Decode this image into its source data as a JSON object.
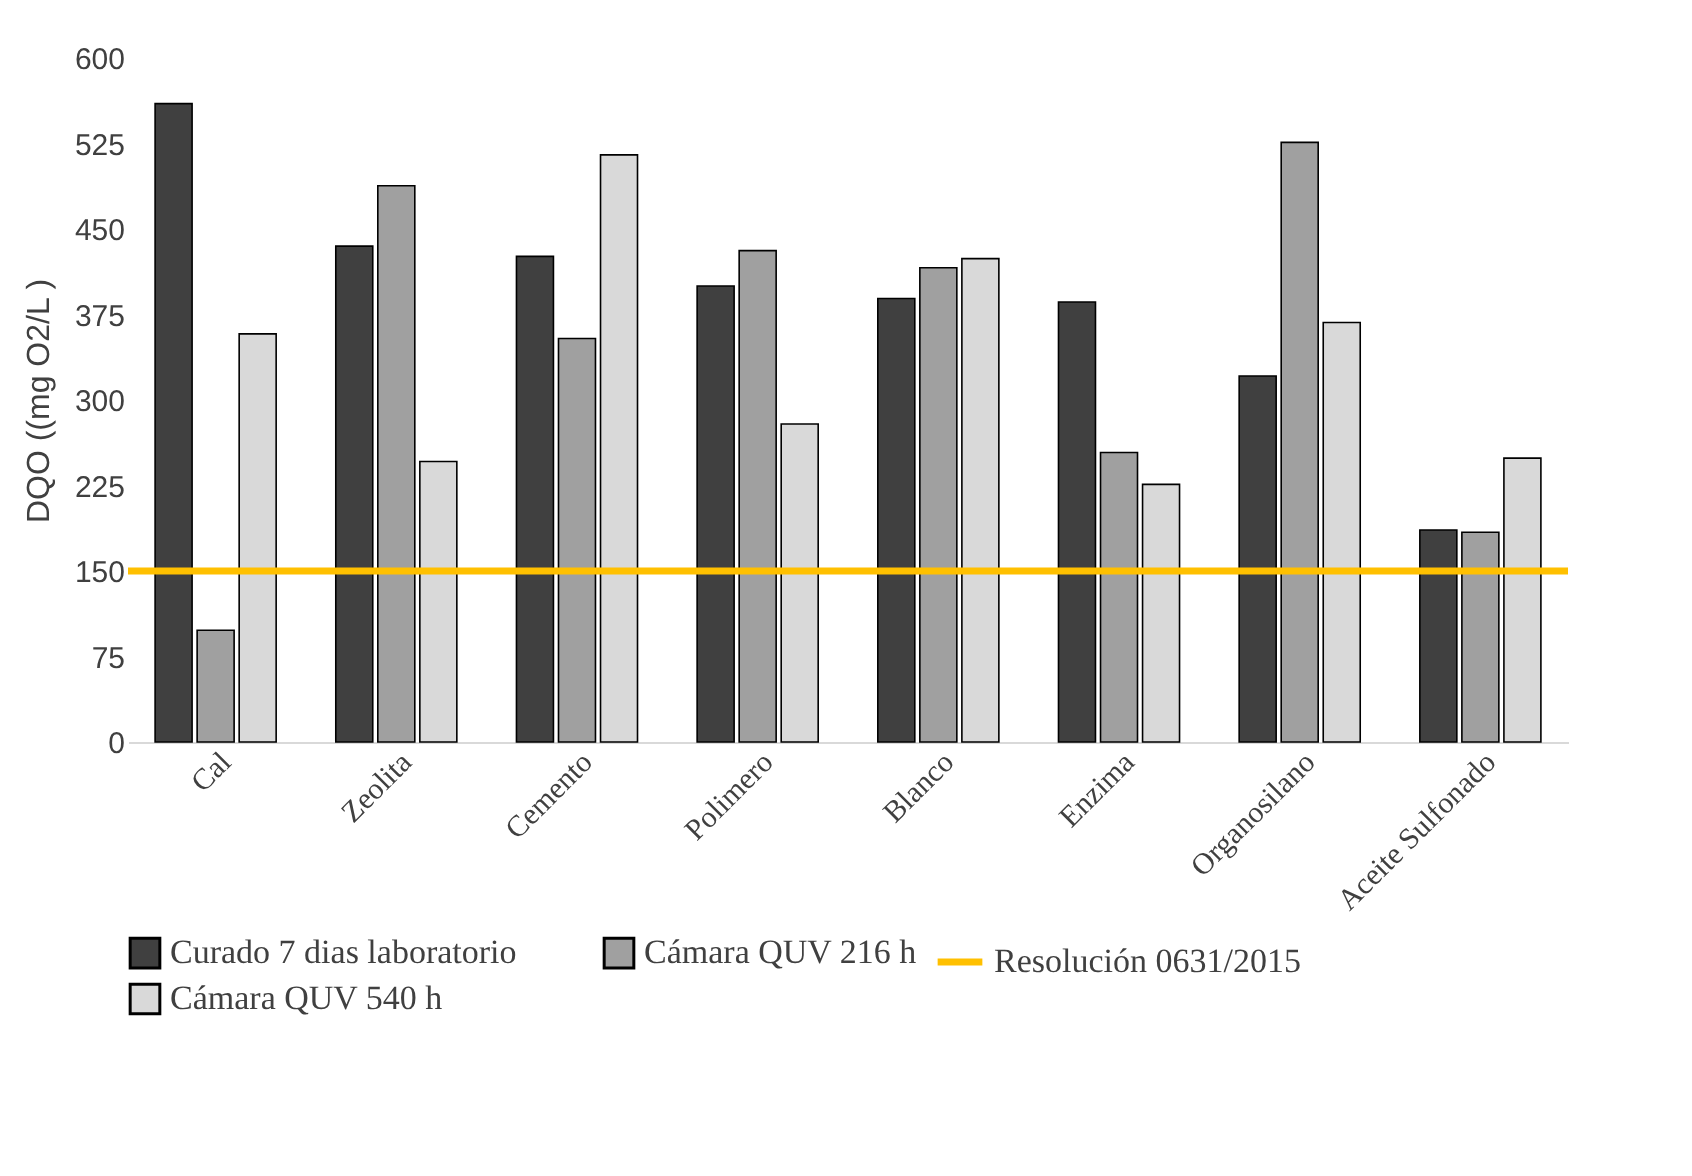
{
  "chart_data": {
    "type": "bar",
    "ylabel": "DQO ((mg O2/L )",
    "categories": [
      "Cal",
      "Zeolita",
      "Cemento",
      "Polimero",
      "Blanco",
      "Enzima",
      "Organosilano",
      "Aceite Sulfonado"
    ],
    "series": [
      {
        "name": "Curado 7 dias laboratorio",
        "color": "#404040",
        "values": [
          560,
          435,
          426,
          400,
          389,
          386,
          321,
          186
        ]
      },
      {
        "name": "Cámara QUV 216 h",
        "color": "#a0a0a0",
        "values": [
          98,
          488,
          354,
          431,
          416,
          254,
          526,
          184
        ]
      },
      {
        "name": "Cámara QUV 540 h",
        "color": "#d9d9d9",
        "values": [
          358,
          246,
          515,
          279,
          424,
          226,
          368,
          249
        ]
      }
    ],
    "ylim": [
      0,
      600
    ],
    "yticks": [
      0,
      75,
      150,
      225,
      300,
      375,
      450,
      525,
      600
    ],
    "ref_lines": [
      {
        "axis": "y",
        "value": 150,
        "label": "Resolución 0631/2015",
        "color": "#ffc000"
      }
    ],
    "legend": "bottom"
  }
}
